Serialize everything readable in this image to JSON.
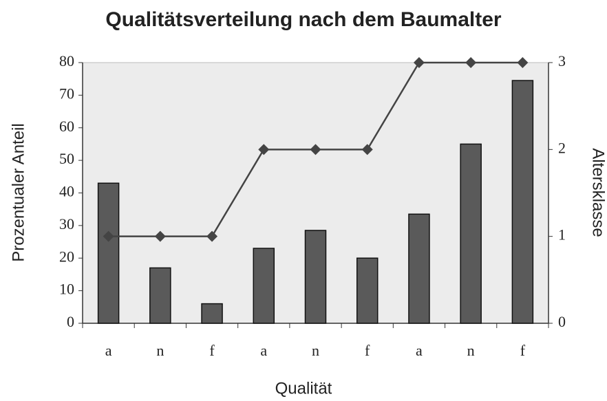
{
  "chart_data": {
    "type": "bar",
    "title": "Qualitätsverteilung nach dem Baumalter",
    "x_label": "Qualität",
    "y_label": "Prozentualer Anteil",
    "y2_label": "Altersklasse",
    "categories": [
      "a",
      "n",
      "f",
      "a",
      "n",
      "f",
      "a",
      "n",
      "f"
    ],
    "series": [
      {
        "type": "bar",
        "color": "#5a5a5a",
        "values": [
          43,
          17,
          6,
          23,
          28.5,
          20,
          33.5,
          55,
          74.5
        ]
      },
      {
        "type": "line",
        "axis": "y2",
        "color": "#444444",
        "values": [
          1,
          1,
          1,
          2,
          2,
          2,
          3,
          3,
          3
        ]
      }
    ],
    "ylim": [
      0,
      80
    ],
    "yticks": [
      0,
      10,
      20,
      30,
      40,
      50,
      60,
      70,
      80
    ],
    "y2lim": [
      0,
      3
    ],
    "y2ticks": [
      0,
      1,
      2,
      3
    ],
    "grid": false
  }
}
